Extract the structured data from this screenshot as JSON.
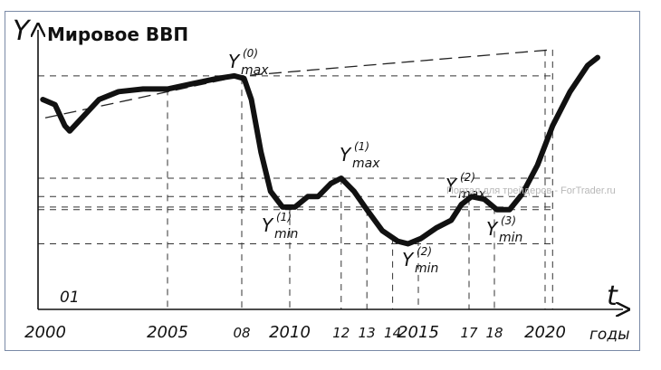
{
  "chart_data": {
    "type": "line",
    "title": "Мировое ВВП",
    "ylabel": "Y",
    "xlabel": "t",
    "x_unit": "годы",
    "x_ticks": [
      {
        "label": "2000",
        "year": 2000
      },
      {
        "label": "2005",
        "year": 2005
      },
      {
        "label": "08",
        "year": 2008
      },
      {
        "label": "2010",
        "year": 2010
      },
      {
        "label": "12",
        "year": 2012
      },
      {
        "label": "13",
        "year": 2013
      },
      {
        "label": "14",
        "year": 2014
      },
      {
        "label": "2015",
        "year": 2015
      },
      {
        "label": "17",
        "year": 2017
      },
      {
        "label": "18",
        "year": 2018
      },
      {
        "label": "2020",
        "year": 2020
      }
    ],
    "inner_label": {
      "text": "01",
      "year": 2001
    },
    "grid": "dashed",
    "series": [
      {
        "style": "solid-thick",
        "points": [
          [
            1999.9,
            0.8
          ],
          [
            2000.4,
            0.78
          ],
          [
            2000.8,
            0.7
          ],
          [
            2001.0,
            0.68
          ],
          [
            2001.5,
            0.73
          ],
          [
            2002.2,
            0.8
          ],
          [
            2003.0,
            0.83
          ],
          [
            2004.0,
            0.84
          ],
          [
            2005.0,
            0.84
          ],
          [
            2006.0,
            0.86
          ],
          [
            2007.0,
            0.88
          ],
          [
            2007.7,
            0.89
          ],
          [
            2008.1,
            0.88
          ],
          [
            2008.4,
            0.8
          ],
          [
            2008.8,
            0.6
          ],
          [
            2009.2,
            0.45
          ],
          [
            2009.7,
            0.39
          ],
          [
            2010.2,
            0.39
          ],
          [
            2010.7,
            0.43
          ],
          [
            2011.1,
            0.43
          ],
          [
            2011.6,
            0.48
          ],
          [
            2012.0,
            0.5
          ],
          [
            2012.5,
            0.45
          ],
          [
            2013.0,
            0.38
          ],
          [
            2013.6,
            0.3
          ],
          [
            2014.2,
            0.26
          ],
          [
            2014.6,
            0.25
          ],
          [
            2015.1,
            0.27
          ],
          [
            2015.7,
            0.31
          ],
          [
            2016.3,
            0.34
          ],
          [
            2016.7,
            0.4
          ],
          [
            2017.1,
            0.43
          ],
          [
            2017.6,
            0.42
          ],
          [
            2018.1,
            0.38
          ],
          [
            2018.6,
            0.38
          ],
          [
            2019.1,
            0.44
          ],
          [
            2019.7,
            0.55
          ],
          [
            2020.3,
            0.7
          ],
          [
            2021.0,
            0.83
          ],
          [
            2021.7,
            0.93
          ],
          [
            2022.1,
            0.96
          ]
        ]
      },
      {
        "style": "dashed-trend",
        "points": [
          [
            2000.0,
            0.73
          ],
          [
            2008.0,
            0.89
          ],
          [
            2020.3,
            0.99
          ]
        ]
      }
    ],
    "annotations": [
      {
        "base": "Y",
        "sub": "max",
        "sup": "(0)",
        "year": 2008
      },
      {
        "base": "Y",
        "sub": "max",
        "sup": "(1)",
        "year": 2012
      },
      {
        "base": "Y",
        "sub": "max",
        "sup": "(2)",
        "year": 2017
      },
      {
        "base": "Y",
        "sub": "min",
        "sup": "(1)",
        "year": 2010
      },
      {
        "base": "Y",
        "sub": "min",
        "sup": "(2)",
        "year": 2014.6
      },
      {
        "base": "Y",
        "sub": "min",
        "sup": "(3)",
        "year": 2018.3
      }
    ]
  },
  "watermark": "Портал для трейдеров - ForTrader.ru"
}
